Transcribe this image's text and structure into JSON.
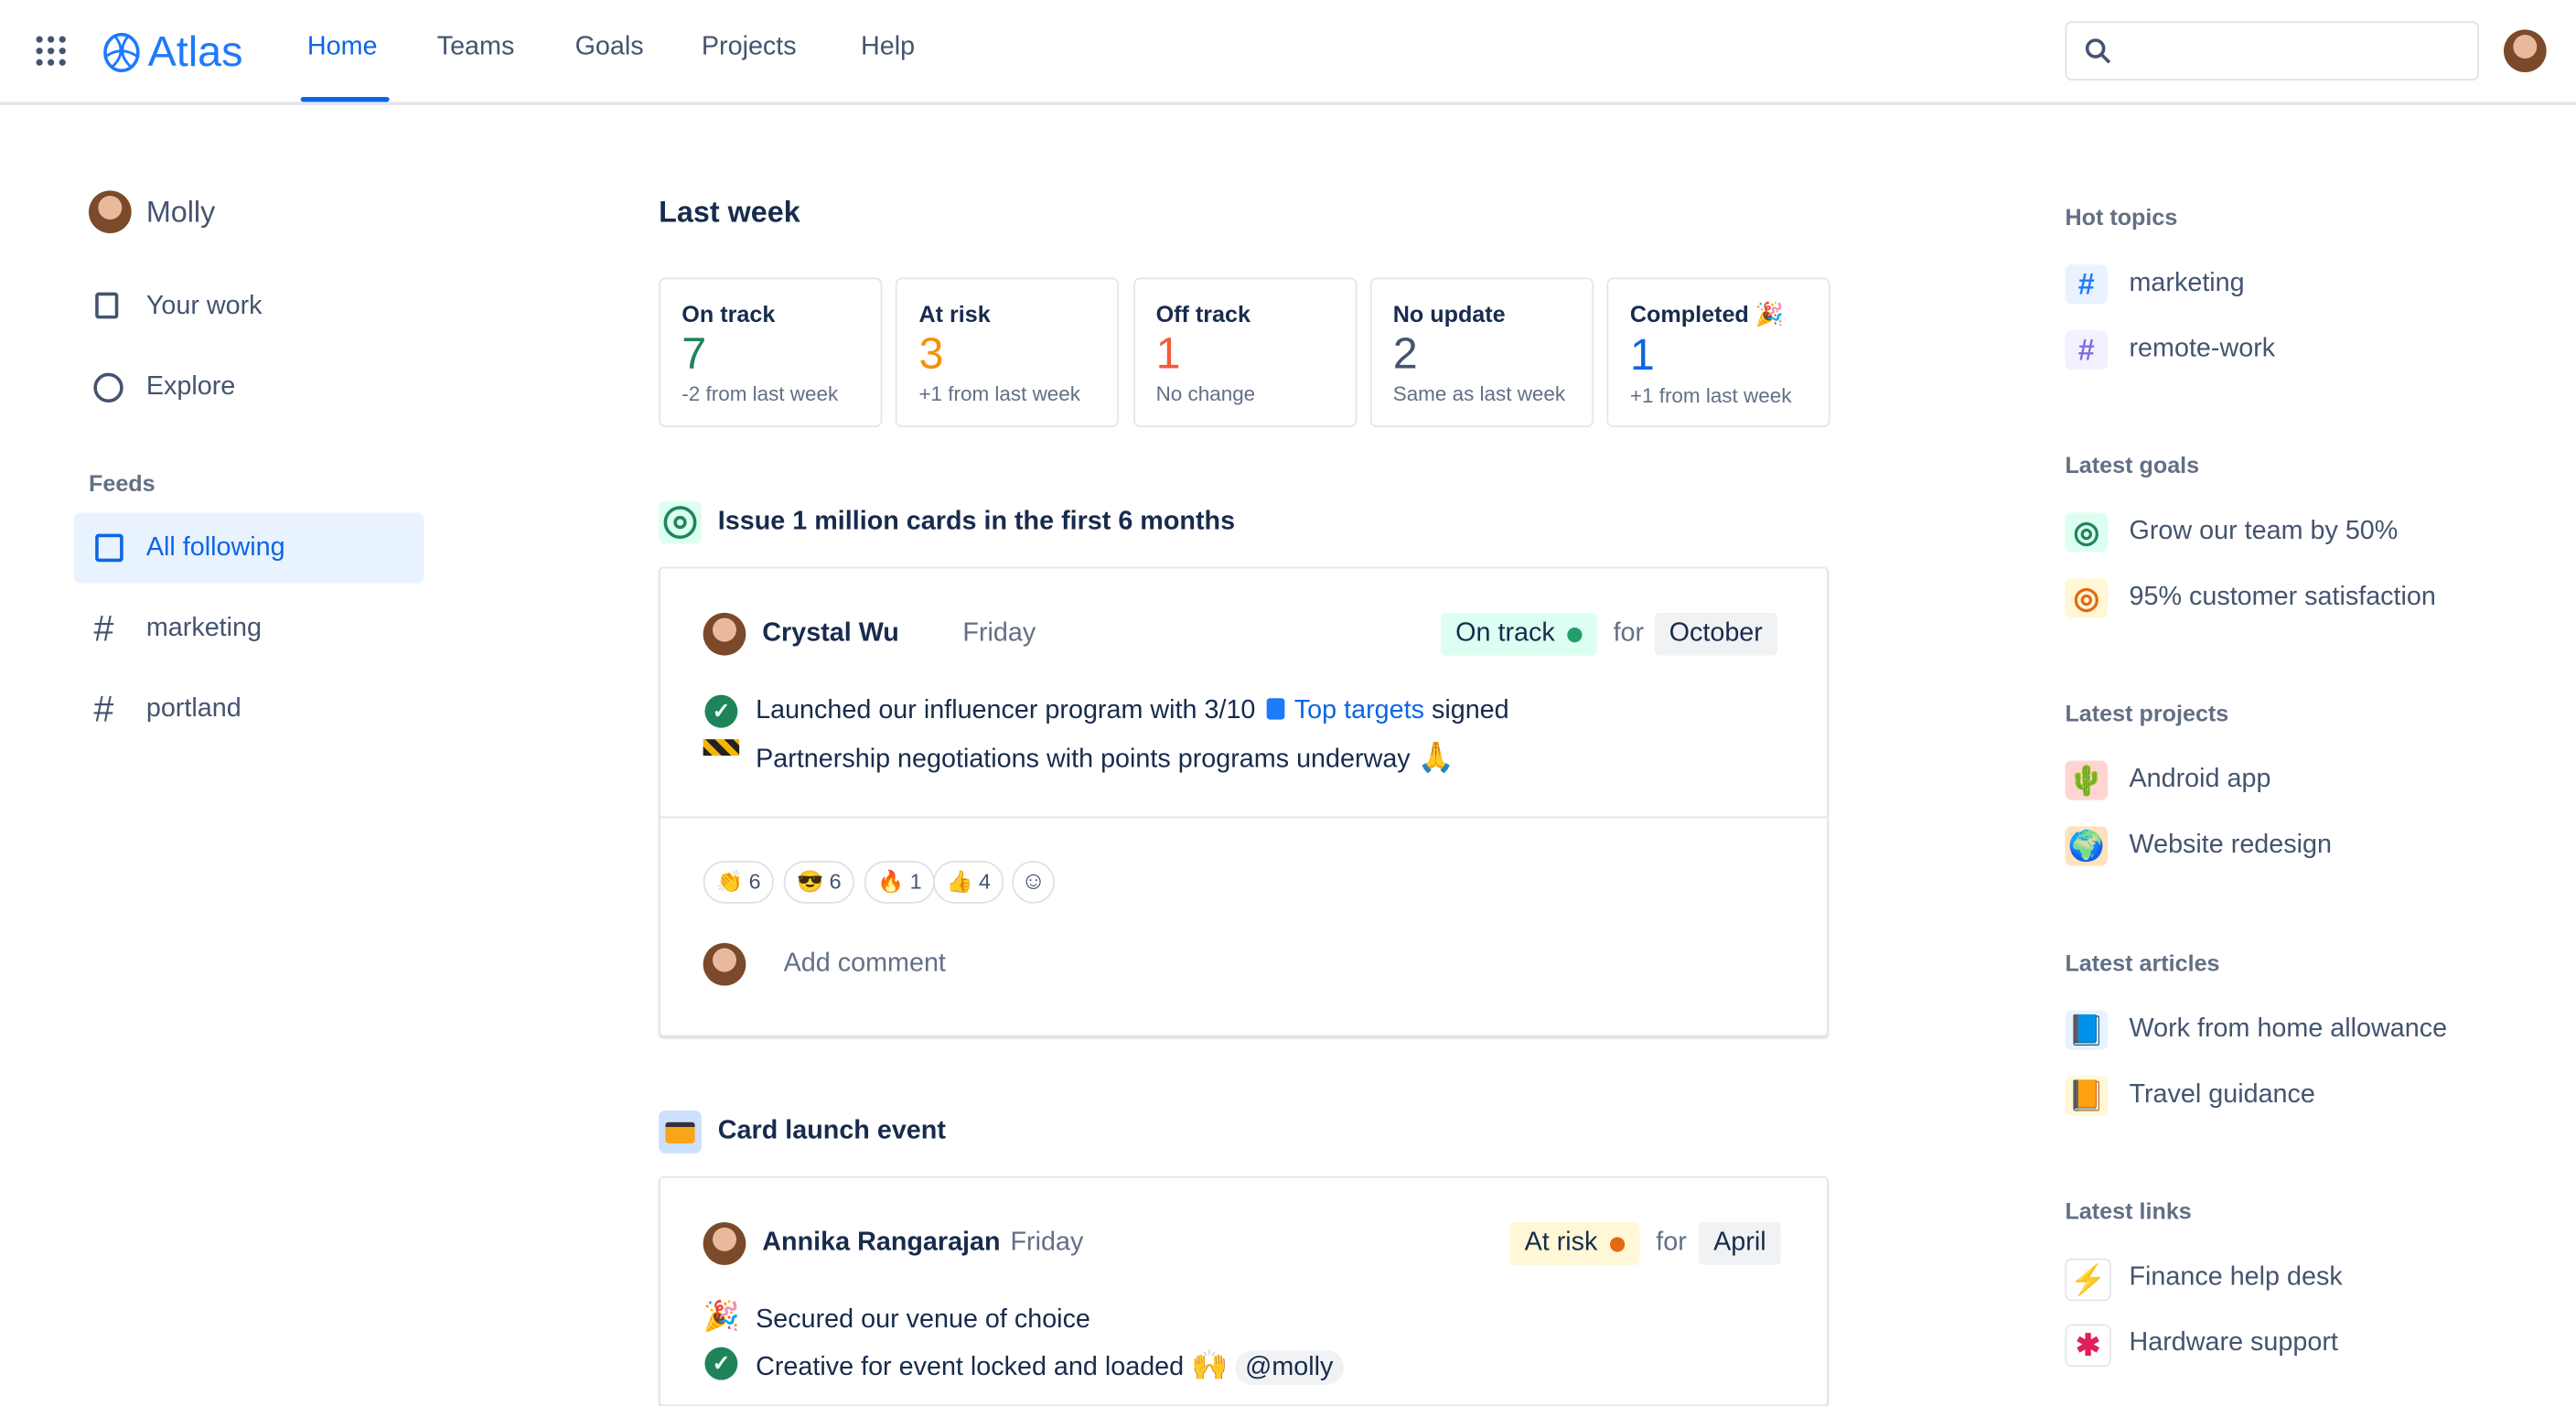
{
  "header": {
    "app_name": "Atlas",
    "nav": [
      "Home",
      "Teams",
      "Goals",
      "Projects",
      "Help"
    ],
    "active": "Home",
    "search_placeholder": ""
  },
  "sidebar": {
    "user": "Molly",
    "items": [
      "Your work",
      "Explore"
    ],
    "feeds_label": "Feeds",
    "feeds": [
      "All following",
      "marketing",
      "portland"
    ],
    "selected": "All following"
  },
  "main": {
    "title": "Last week",
    "stats": [
      {
        "label": "On track",
        "value": "7",
        "sub": "-2 from last week",
        "color": "#1f845a"
      },
      {
        "label": "At risk",
        "value": "3",
        "sub": "+1 from last week",
        "color": "#f79009"
      },
      {
        "label": "Off track",
        "value": "1",
        "sub": "No change",
        "color": "#f15b3a"
      },
      {
        "label": "No update",
        "value": "2",
        "sub": "Same as last week",
        "color": "#44546f"
      },
      {
        "label": "Completed 🎉",
        "value": "1",
        "sub": "+1 from last week",
        "color": "#0c66e4"
      }
    ],
    "goal1": {
      "title": "Issue 1 million cards in the first 6 months",
      "author": "Crystal Wu",
      "day": "Friday",
      "status": "On track",
      "for": "for",
      "month": "October",
      "line1_pre": "Launched our influencer program with 3/10",
      "line1_link": "Top targets",
      "line1_post": "signed",
      "line2": "Partnership negotiations with points programs underway",
      "reactions": [
        {
          "emoji": "👏",
          "count": "6"
        },
        {
          "emoji": "😎",
          "count": "6"
        },
        {
          "emoji": "🔥",
          "count": "1"
        },
        {
          "emoji": "👍",
          "count": "4"
        }
      ],
      "comment_placeholder": "Add comment"
    },
    "goal2": {
      "title": "Card launch event",
      "author": "Annika Rangarajan",
      "day": "Friday",
      "status": "At risk",
      "for": "for",
      "month": "April",
      "line1": "Secured our venue of choice",
      "line2": "Creative for event locked and loaded",
      "mention": "@molly"
    }
  },
  "right": {
    "hot_topics": {
      "label": "Hot topics",
      "items": [
        "marketing",
        "remote-work"
      ]
    },
    "goals": {
      "label": "Latest goals",
      "items": [
        "Grow our team by 50%",
        "95% customer satisfaction"
      ]
    },
    "projects": {
      "label": "Latest projects",
      "items": [
        "Android app",
        "Website redesign"
      ]
    },
    "articles": {
      "label": "Latest articles",
      "items": [
        "Work from home allowance",
        "Travel guidance"
      ]
    },
    "links": {
      "label": "Latest links",
      "items": [
        "Finance help desk",
        "Hardware support"
      ]
    }
  }
}
